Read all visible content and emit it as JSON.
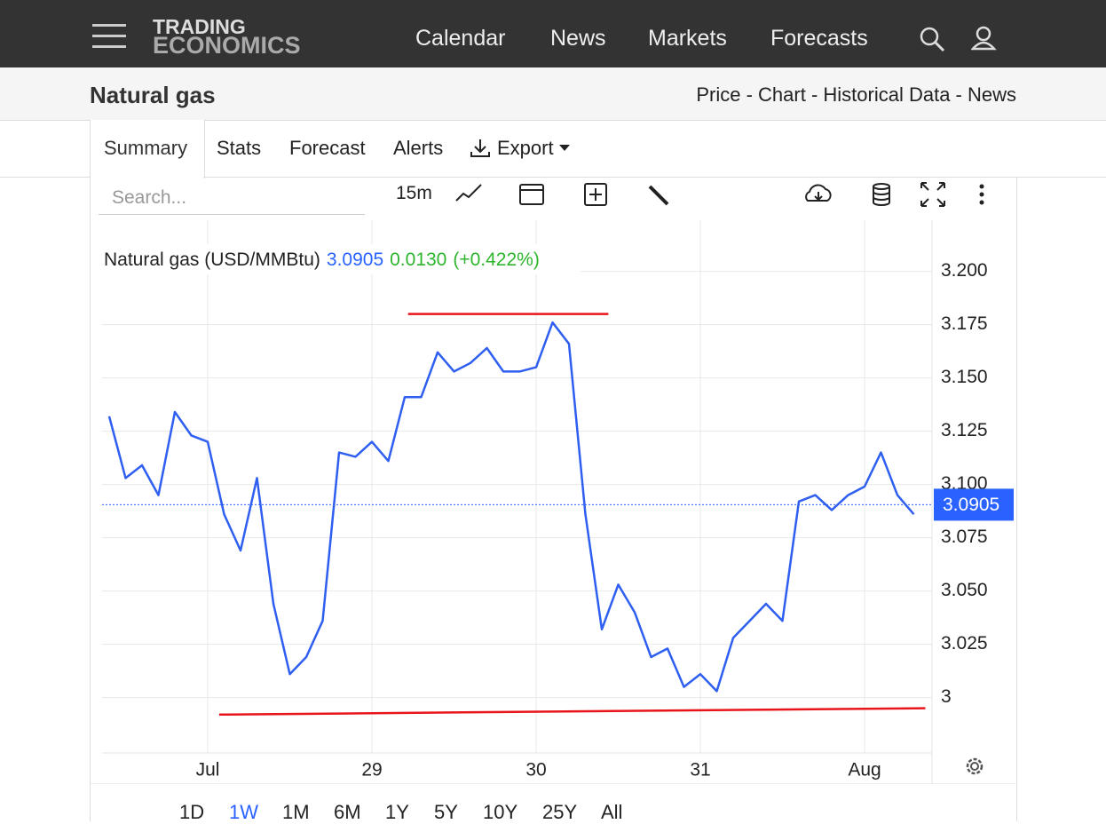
{
  "nav": {
    "logo_top": "TRADING",
    "logo_bottom": "ECONOMICS",
    "items": [
      "Calendar",
      "News",
      "Markets",
      "Forecasts"
    ]
  },
  "header": {
    "title": "Natural gas",
    "links": "Price - Chart - Historical Data - News"
  },
  "tabs": {
    "items": [
      "Summary",
      "Stats",
      "Forecast",
      "Alerts",
      "Export"
    ],
    "active": "Summary"
  },
  "toolbar": {
    "search": "Search...",
    "interval": "15m"
  },
  "ranges": {
    "items": [
      "1D",
      "1W",
      "1M",
      "6M",
      "1Y",
      "5Y",
      "10Y",
      "25Y",
      "All"
    ],
    "active": "1W"
  },
  "chart_data": {
    "type": "line",
    "legend": {
      "name": "Natural gas (USD/MMBtu)",
      "price": "3.0905",
      "change": "0.0130",
      "change_pct": "(+0.422%)"
    },
    "categories": [
      null,
      null,
      null,
      null,
      null,
      null,
      "Jul",
      null,
      null,
      null,
      null,
      null,
      null,
      null,
      null,
      null,
      "29",
      null,
      null,
      null,
      null,
      null,
      null,
      null,
      null,
      null,
      "30",
      null,
      null,
      null,
      null,
      null,
      null,
      null,
      null,
      null,
      "31",
      null,
      null,
      null,
      null,
      null,
      null,
      null,
      null,
      null,
      "Aug",
      null,
      null,
      null
    ],
    "series": [
      {
        "name": "Natural gas",
        "color": "#2f5ff0",
        "values": [
          3.132,
          3.103,
          3.109,
          3.095,
          3.134,
          3.123,
          3.12,
          3.086,
          3.069,
          3.103,
          3.044,
          3.011,
          3.019,
          3.036,
          3.115,
          3.113,
          3.12,
          3.111,
          3.141,
          3.141,
          3.162,
          3.153,
          3.157,
          3.164,
          3.153,
          3.153,
          3.155,
          3.176,
          3.166,
          3.086,
          3.032,
          3.053,
          3.04,
          3.019,
          3.023,
          3.005,
          3.011,
          3.003,
          3.028,
          3.036,
          3.044,
          3.036,
          3.092,
          3.095,
          3.088,
          3.095,
          3.099,
          3.115,
          3.095,
          3.086
        ]
      }
    ],
    "last_value": 3.0905,
    "last_color": "#2962ff",
    "trend_lines": [
      {
        "color": "#e8141a",
        "x": [
          18.2,
          30.4
        ],
        "y": [
          3.18,
          3.18
        ]
      },
      {
        "color": "#e8141a",
        "x": [
          6.7,
          49.7
        ],
        "y": [
          2.992,
          2.995
        ]
      }
    ],
    "ylim": [
      2.974,
      3.224
    ],
    "yticks": [
      3,
      {
        "value": 3.025,
        "label": "3.025"
      },
      {
        "value": 3.05,
        "label": "3.050"
      },
      {
        "value": 3.075,
        "label": "3.075"
      },
      {
        "value": 3.1,
        "label": "3.100"
      },
      {
        "value": 3.125,
        "label": "3.125"
      },
      {
        "value": 3.15,
        "label": "3.150"
      },
      {
        "value": 3.175,
        "label": "3.175"
      },
      {
        "value": 3.2,
        "label": "3.200"
      }
    ],
    "grid": true
  }
}
